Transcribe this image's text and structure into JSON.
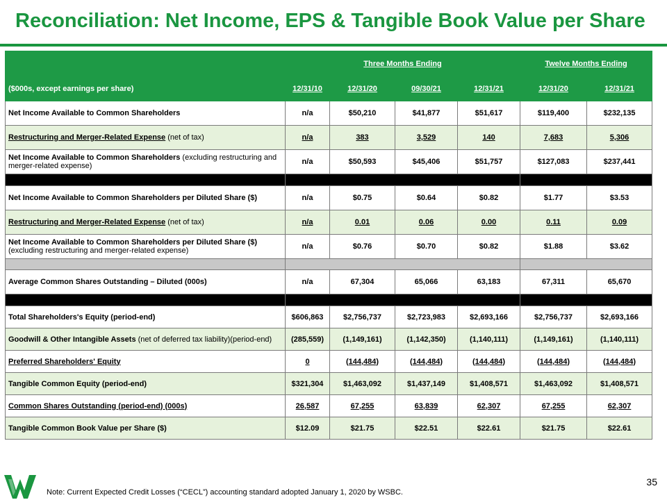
{
  "slide": {
    "title": "Reconciliation: Net Income, EPS & Tangible Book Value per Share",
    "page_number": "35",
    "footnote": "Note: Current Expected Credit Losses (“CECL”) accounting standard adopted January 1, 2020 by WSBC.",
    "accent_color": "#1a9640",
    "logo_icon": "wesbanco-w-logo-icon"
  },
  "table": {
    "header_group_three": "Three Months Ending",
    "header_group_twelve": "Twelve Months Ending",
    "units_label": "($000s, except earnings per share)",
    "columns": [
      "12/31/10",
      "12/31/20",
      "09/30/21",
      "12/31/21",
      "12/31/20",
      "12/31/21"
    ],
    "rows": {
      "net_income": {
        "label": "Net Income Available to Common Shareholders",
        "values": [
          "n/a",
          "$50,210",
          "$41,877",
          "$51,617",
          "$119,400",
          "$232,135"
        ]
      },
      "restructuring": {
        "label": "Restructuring and Merger-Related Expense",
        "note": "(net of tax)",
        "values": [
          "n/a",
          "383",
          "3,529",
          "140",
          "7,683",
          "5,306"
        ]
      },
      "net_income_excl": {
        "label": "Net Income Available to Common Shareholders",
        "note": "(excluding restructuring and merger-related expense)",
        "values": [
          "n/a",
          "$50,593",
          "$45,406",
          "$51,757",
          "$127,083",
          "$237,441"
        ]
      },
      "eps": {
        "label": "Net Income Available to Common Shareholders per Diluted Share ($)",
        "values": [
          "n/a",
          "$0.75",
          "$0.64",
          "$0.82",
          "$1.77",
          "$3.53"
        ]
      },
      "restructuring_eps": {
        "label": "Restructuring and Merger-Related Expense",
        "note": "(net of tax)",
        "values": [
          "n/a",
          "0.01",
          "0.06",
          "0.00",
          "0.11",
          "0.09"
        ]
      },
      "eps_excl": {
        "label": "Net Income Available to Common Shareholders per Diluted Share ($)",
        "note": "(excluding restructuring and merger-related expense)",
        "values": [
          "n/a",
          "$0.76",
          "$0.70",
          "$0.82",
          "$1.88",
          "$3.62"
        ]
      },
      "avg_shares": {
        "label": "Average Common Shares Outstanding – Diluted (000s)",
        "values": [
          "n/a",
          "67,304",
          "65,066",
          "63,183",
          "67,311",
          "65,670"
        ]
      },
      "total_equity": {
        "label": "Total Shareholders's Equity (period-end)",
        "values": [
          "$606,863",
          "$2,756,737",
          "$2,723,983",
          "$2,693,166",
          "$2,756,737",
          "$2,693,166"
        ]
      },
      "goodwill": {
        "label": "Goodwill & Other Intangible Assets",
        "note": "(net of deferred tax liability)(period-end)",
        "values": [
          "(285,559)",
          "(1,149,161)",
          "(1,142,350)",
          "(1,140,111)",
          "(1,149,161)",
          "(1,140,111)"
        ]
      },
      "preferred": {
        "label": "Preferred Shareholders' Equity",
        "values": [
          "0",
          "(144,484)",
          "(144,484)",
          "(144,484)",
          "(144,484)",
          "(144,484)"
        ]
      },
      "tangible_equity": {
        "label": "Tangible Common Equity (period-end)",
        "values": [
          "$321,304",
          "$1,463,092",
          "$1,437,149",
          "$1,408,571",
          "$1,463,092",
          "$1,408,571"
        ]
      },
      "shares_outstanding": {
        "label": "Common Shares Outstanding (period-end) (000s)",
        "values": [
          "26,587",
          "67,255",
          "63,839",
          "62,307",
          "67,255",
          "62,307"
        ]
      },
      "tbvps": {
        "label": "Tangible Common Book Value per Share ($)",
        "values": [
          "$12.09",
          "$21.75",
          "$22.51",
          "$22.61",
          "$21.75",
          "$22.61"
        ]
      }
    }
  }
}
